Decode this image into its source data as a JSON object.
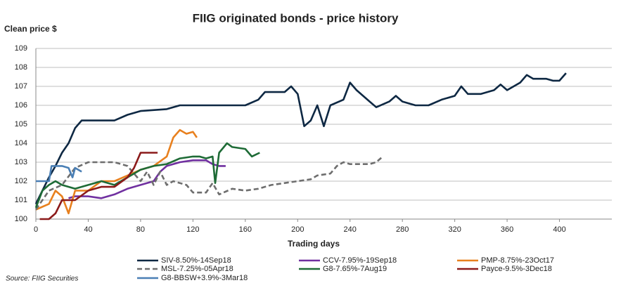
{
  "chart_data": {
    "type": "line",
    "title": "FIIG originated bonds - price history",
    "y_label": "Clean price $",
    "x_label": "Trading days",
    "source": "Source: FIIG Securities",
    "xlim": [
      0,
      440
    ],
    "xticks": [
      0,
      40,
      80,
      120,
      160,
      200,
      240,
      280,
      320,
      360,
      400
    ],
    "ylim": [
      100,
      109
    ],
    "yticks": [
      100,
      101,
      102,
      103,
      104,
      105,
      106,
      107,
      108,
      109
    ],
    "grid": true,
    "legend": "bottom",
    "series": [
      {
        "name": "SIV-8.50%-14Sep18",
        "color": "#0e2843",
        "dash": false,
        "x": [
          0,
          5,
          10,
          15,
          20,
          25,
          30,
          35,
          60,
          70,
          80,
          100,
          110,
          160,
          170,
          175,
          190,
          195,
          200,
          205,
          210,
          215,
          220,
          225,
          235,
          240,
          245,
          250,
          255,
          260,
          270,
          275,
          280,
          290,
          300,
          310,
          320,
          325,
          330,
          340,
          350,
          355,
          360,
          370,
          375,
          380,
          390,
          395,
          400,
          405
        ],
        "values": [
          100.8,
          101.5,
          102.2,
          102.8,
          103.5,
          104,
          104.8,
          105.2,
          105.2,
          105.5,
          105.7,
          105.8,
          106,
          106,
          106.3,
          106.7,
          106.7,
          107,
          106.6,
          104.9,
          105.2,
          106,
          104.9,
          106,
          106.3,
          107.2,
          106.8,
          106.5,
          106.2,
          105.9,
          106.2,
          106.5,
          106.2,
          106,
          106,
          106.3,
          106.5,
          107,
          106.6,
          106.6,
          106.8,
          107.1,
          106.8,
          107.2,
          107.6,
          107.4,
          107.4,
          107.3,
          107.3,
          107.7
        ]
      },
      {
        "name": "CCV-7.95%-19Sep18",
        "color": "#7030a0",
        "dash": false,
        "x": [
          25,
          30,
          40,
          50,
          60,
          70,
          80,
          90,
          95,
          100,
          110,
          120,
          130,
          135,
          140,
          145
        ],
        "values": [
          101.1,
          101.2,
          101.2,
          101.1,
          101.3,
          101.6,
          101.8,
          102,
          102.5,
          102.8,
          103,
          103.1,
          103.1,
          102.9,
          102.8,
          102.8
        ]
      },
      {
        "name": "PMP-8.75%-23Oct17",
        "color": "#e8801e",
        "dash": false,
        "x": [
          0,
          10,
          15,
          20,
          25,
          30,
          40,
          50,
          60,
          70,
          80,
          90,
          100,
          105,
          110,
          115,
          120,
          123
        ],
        "values": [
          100.5,
          100.8,
          101.5,
          101.2,
          100.3,
          101.5,
          101.5,
          102,
          102,
          102.3,
          102.6,
          102.8,
          103.3,
          104.3,
          104.7,
          104.5,
          104.6,
          104.3
        ]
      },
      {
        "name": "MSL-7.25%-05Apr18",
        "color": "#6e6e6e",
        "dash": true,
        "x": [
          0,
          10,
          20,
          30,
          40,
          60,
          70,
          80,
          85,
          90,
          95,
          100,
          105,
          115,
          120,
          130,
          135,
          140,
          150,
          160,
          170,
          180,
          190,
          200,
          210,
          215,
          225,
          230,
          235,
          240,
          250,
          255,
          260,
          265
        ],
        "values": [
          100.5,
          101.5,
          101.8,
          102.7,
          103,
          103,
          102.8,
          102,
          102.5,
          101.8,
          102.5,
          101.8,
          102,
          101.8,
          101.4,
          101.4,
          101.9,
          101.3,
          101.6,
          101.5,
          101.6,
          101.8,
          101.9,
          102,
          102.1,
          102.3,
          102.4,
          102.8,
          103,
          102.9,
          102.9,
          102.9,
          103,
          103.3
        ]
      },
      {
        "name": "G8-7.65%-7Aug19",
        "color": "#1e6b36",
        "dash": false,
        "x": [
          0,
          5,
          10,
          15,
          20,
          30,
          40,
          50,
          60,
          70,
          80,
          90,
          100,
          110,
          120,
          125,
          130,
          135,
          137,
          140,
          146,
          150,
          160,
          165,
          168,
          171
        ],
        "values": [
          100.6,
          101.5,
          101.8,
          102,
          101.8,
          101.6,
          101.8,
          102,
          101.8,
          102.2,
          102.6,
          102.8,
          102.9,
          103.2,
          103.3,
          103.3,
          103.2,
          103.3,
          101.9,
          103.5,
          104,
          103.8,
          103.7,
          103.3,
          103.4,
          103.5
        ]
      },
      {
        "name": "Payce-9.5%-3Dec18",
        "color": "#8b1a1a",
        "dash": false,
        "x": [
          3,
          10,
          15,
          20,
          30,
          40,
          50,
          60,
          70,
          75,
          80,
          93
        ],
        "values": [
          100,
          100,
          100.3,
          101,
          101,
          101.5,
          101.7,
          101.7,
          102.2,
          102.7,
          103.5,
          103.5
        ]
      },
      {
        "name": "G8-BBSW+3.9%-3Mar18",
        "color": "#4a7fb5",
        "dash": false,
        "x": [
          0,
          10,
          12,
          20,
          25,
          28,
          30,
          35
        ],
        "values": [
          102,
          102,
          102.8,
          102.8,
          102.7,
          102.2,
          102.7,
          102.5
        ]
      }
    ]
  }
}
